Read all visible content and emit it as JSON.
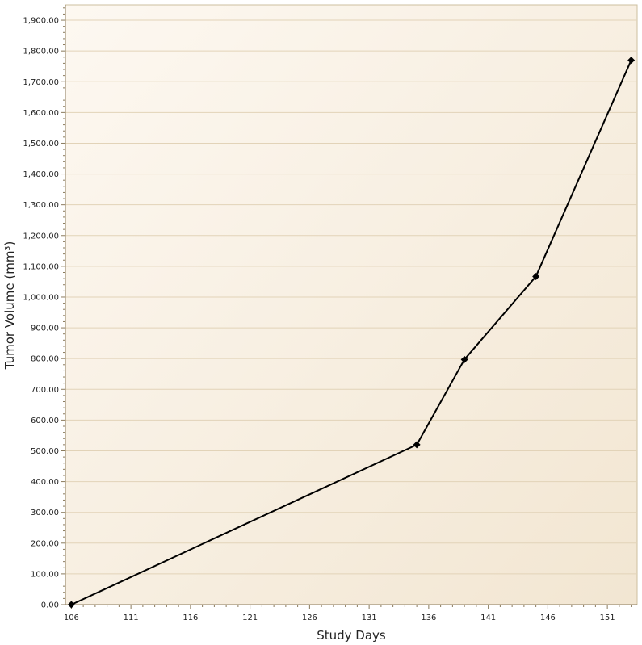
{
  "chart_data": {
    "type": "line",
    "title": "",
    "xlabel": "Study Days",
    "ylabel": "Tumor Volume (mm³)",
    "xlim": [
      105.5,
      153.5
    ],
    "ylim": [
      0,
      1950
    ],
    "x_ticks": [
      "106",
      "111",
      "116",
      "121",
      "126",
      "131",
      "136",
      "141",
      "146",
      "151"
    ],
    "y_ticks": [
      "0.00",
      "100.00",
      "200.00",
      "300.00",
      "400.00",
      "500.00",
      "600.00",
      "700.00",
      "800.00",
      "900.00",
      "1,000.00",
      "1,100.00",
      "1,200.00",
      "1,300.00",
      "1,400.00",
      "1,500.00",
      "1,600.00",
      "1,700.00",
      "1,800.00",
      "1,900.00"
    ],
    "grid": "horizontal",
    "legend": "none",
    "series": [
      {
        "x": [
          106,
          135,
          139,
          145,
          153
        ],
        "y": [
          0,
          520,
          797,
          1067,
          1770
        ],
        "marker": "diamond",
        "color": "#000000"
      }
    ],
    "colors": {
      "background_start": "#fdf8f1",
      "background_end": "#f2e6d2",
      "gridline": "#e2d3b8",
      "axis": "#8a7a5c"
    }
  }
}
